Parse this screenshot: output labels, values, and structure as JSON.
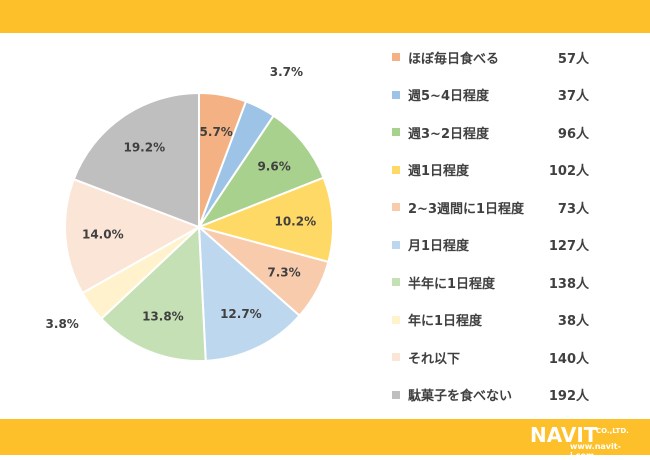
{
  "chart_data": {
    "type": "pie",
    "slices": [
      {
        "label": "ほぼ毎日食べる",
        "count": "57人",
        "percent_label": "5.7%",
        "value": 5.7,
        "color": "#f4b183"
      },
      {
        "label": "週5~4日程度",
        "count": "37人",
        "percent_label": "3.7%",
        "value": 3.7,
        "color": "#9dc3e6"
      },
      {
        "label": "週3~2日程度",
        "count": "96人",
        "percent_label": "9.6%",
        "value": 9.6,
        "color": "#a9d18e"
      },
      {
        "label": "週1日程度",
        "count": "102人",
        "percent_label": "10.2%",
        "value": 10.2,
        "color": "#ffd966"
      },
      {
        "label": "2~3週間に1日程度",
        "count": "73人",
        "percent_label": "7.3%",
        "value": 7.3,
        "color": "#f8cbad"
      },
      {
        "label": "月1日程度",
        "count": "127人",
        "percent_label": "12.7%",
        "value": 12.7,
        "color": "#bdd7ee"
      },
      {
        "label": "半年に1日程度",
        "count": "138人",
        "percent_label": "13.8%",
        "value": 13.8,
        "color": "#c5e0b4"
      },
      {
        "label": "年に1日程度",
        "count": "38人",
        "percent_label": "3.8%",
        "value": 3.8,
        "color": "#fff2cc"
      },
      {
        "label": "それ以下",
        "count": "140人",
        "percent_label": "14.0%",
        "value": 14.0,
        "color": "#fbe5d6"
      },
      {
        "label": "駄菓子を食べない",
        "count": "192人",
        "percent_label": "19.2%",
        "value": 19.2,
        "color": "#bfbfbf"
      }
    ],
    "legend_position": "right"
  },
  "brand": {
    "logo_text": "NAVIT",
    "logo_suffix": "CO.,LTD.",
    "url": "www.navit-j.com",
    "accent_color": "#fdc02b"
  }
}
